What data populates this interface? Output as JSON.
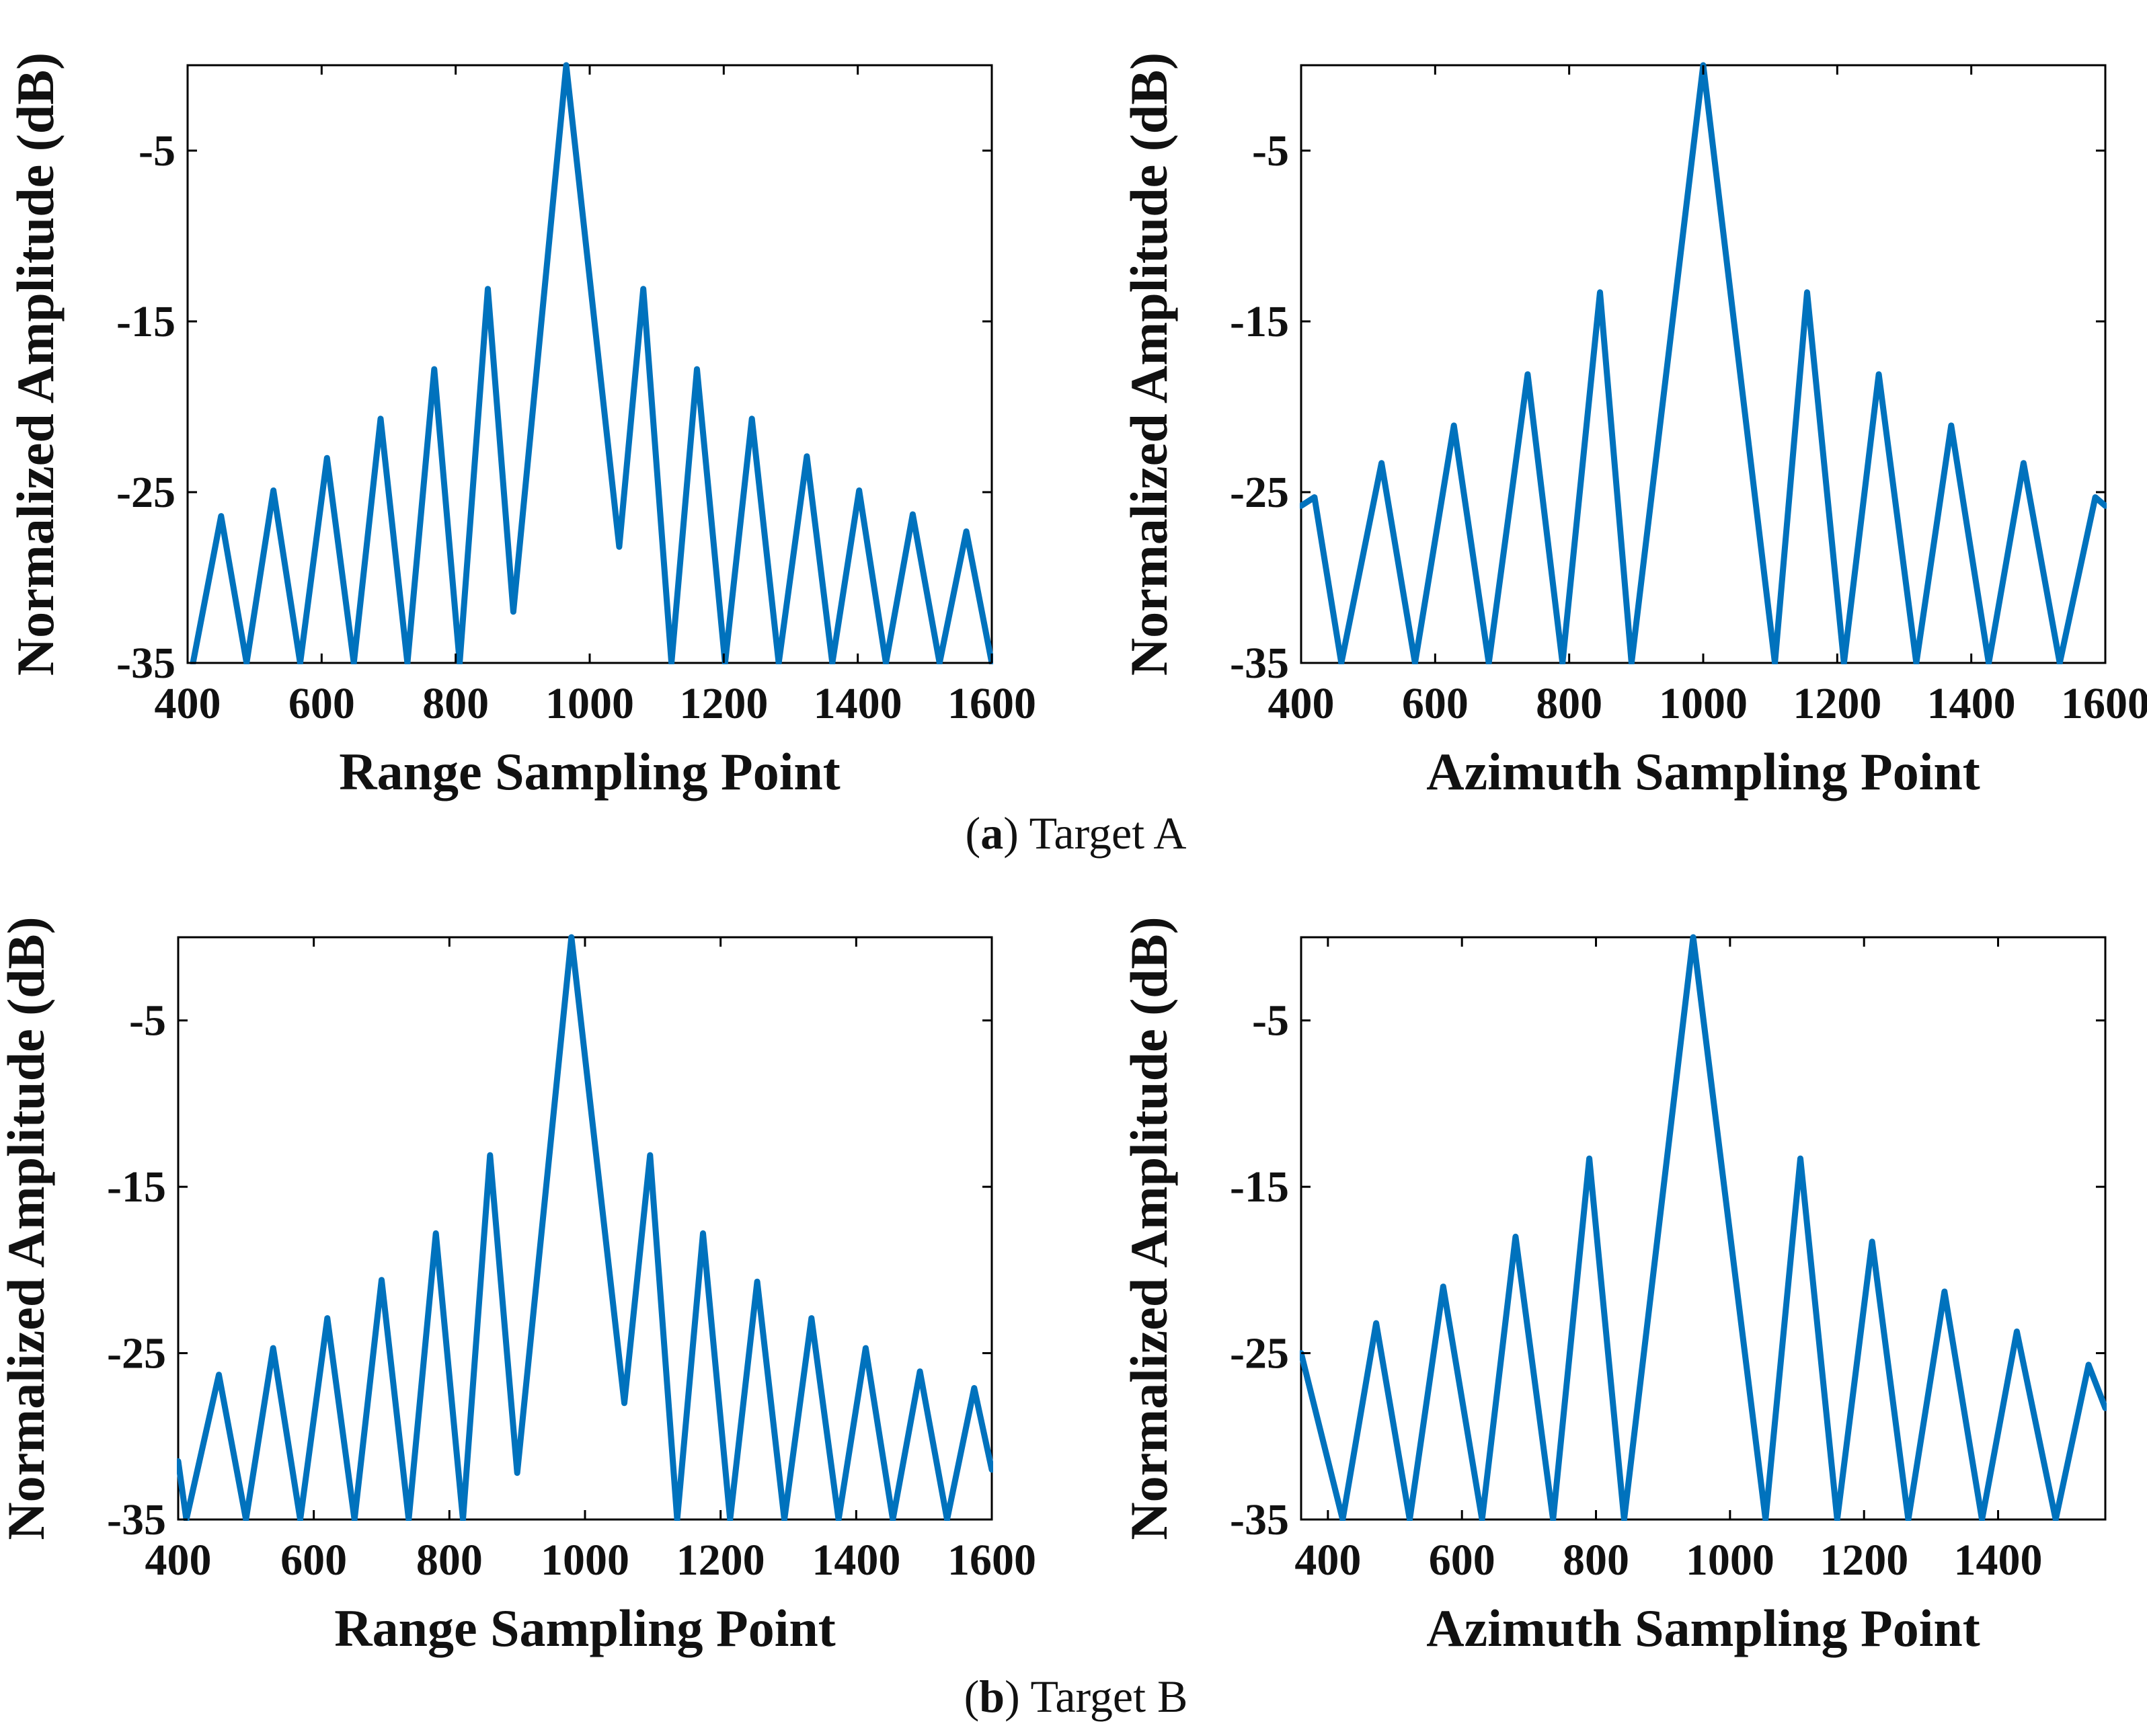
{
  "chart_data": [
    {
      "type": "line",
      "panel": "(a) top-left",
      "xlabel": "Range Sampling Point",
      "ylabel": "Normalized Amplitude (dB)",
      "xlim": [
        400,
        1600
      ],
      "ylim": [
        -35,
        0
      ],
      "xticks": [
        "400",
        "600",
        "800",
        "1000",
        "1200",
        "1400",
        "1600"
      ],
      "yticks": [
        "-5",
        "-15",
        "-25",
        "-35"
      ],
      "series": [
        {
          "name": "Target A range profile",
          "color": "#0072BD",
          "x": [
            408,
            450,
            488,
            528,
            568,
            608,
            648,
            688,
            728,
            768,
            806,
            848,
            886,
            965,
            1044,
            1080,
            1122,
            1160,
            1202,
            1242,
            1282,
            1324,
            1362,
            1402,
            1442,
            1482,
            1522,
            1562,
            1600
          ],
          "y": [
            -35,
            -26.4,
            -35,
            -24.9,
            -35,
            -23.0,
            -35,
            -20.7,
            -35,
            -17.8,
            -35,
            -13.1,
            -32.0,
            0,
            -28.2,
            -13.1,
            -35,
            -17.8,
            -35,
            -20.7,
            -35,
            -22.9,
            -35,
            -24.9,
            -35,
            -26.3,
            -35,
            -27.3,
            -35
          ]
        }
      ]
    },
    {
      "type": "line",
      "panel": "(a) top-right",
      "xlabel": "Azimuth Sampling Point",
      "ylabel": "Normalized Amplitude (dB)",
      "xlim": [
        400,
        1600
      ],
      "ylim": [
        -35,
        0
      ],
      "xticks": [
        "400",
        "600",
        "800",
        "1000",
        "1200",
        "1400",
        "1600"
      ],
      "yticks": [
        "-5",
        "-15",
        "-25",
        "-35"
      ],
      "series": [
        {
          "name": "Target A azimuth profile",
          "color": "#0072BD",
          "x": [
            400,
            420,
            460,
            520,
            570,
            628,
            680,
            738,
            790,
            846,
            893,
            1000,
            1107,
            1155,
            1210,
            1262,
            1318,
            1370,
            1426,
            1478,
            1532,
            1585,
            1600
          ],
          "y": [
            -25.8,
            -25.3,
            -35,
            -23.3,
            -35,
            -21.1,
            -35,
            -18.1,
            -35,
            -13.3,
            -35,
            0,
            -35,
            -13.3,
            -35,
            -18.1,
            -35,
            -21.1,
            -35,
            -23.3,
            -35,
            -25.3,
            -25.8
          ]
        }
      ]
    },
    {
      "type": "line",
      "panel": "(b) bottom-left",
      "xlabel": "Range Sampling Point",
      "ylabel": "Normalized Amplitude (dB)",
      "xlim": [
        400,
        1600
      ],
      "ylim": [
        -35,
        0
      ],
      "xticks": [
        "400",
        "600",
        "800",
        "1000",
        "1200",
        "1400",
        "1600"
      ],
      "yticks": [
        "-5",
        "-15",
        "-25",
        "-35"
      ],
      "series": [
        {
          "name": "Target B range profile",
          "color": "#0072BD",
          "x": [
            400,
            412,
            460,
            500,
            540,
            580,
            620,
            660,
            700,
            740,
            780,
            820,
            860,
            900,
            980,
            1058,
            1096,
            1136,
            1174,
            1214,
            1254,
            1294,
            1334,
            1374,
            1414,
            1454,
            1494,
            1534,
            1574,
            1600
          ],
          "y": [
            -31.5,
            -35,
            -26.3,
            -35,
            -24.7,
            -35,
            -22.9,
            -35,
            -20.6,
            -35,
            -17.8,
            -35,
            -13.1,
            -32.2,
            0,
            -28.0,
            -13.1,
            -35,
            -17.8,
            -35,
            -20.7,
            -35,
            -22.9,
            -35,
            -24.7,
            -35,
            -26.1,
            -35,
            -27.1,
            -32.0
          ]
        }
      ]
    },
    {
      "type": "line",
      "panel": "(b) bottom-right",
      "xlabel": "Azimuth Sampling Point",
      "ylabel": "Normalized Amplitude (dB)",
      "xlim": [
        360,
        1560
      ],
      "ylim": [
        -35,
        0
      ],
      "xticks": [
        "400",
        "600",
        "800",
        "1000",
        "1200",
        "1400"
      ],
      "yticks": [
        "-5",
        "-15",
        "-25",
        "-35"
      ],
      "series": [
        {
          "name": "Target B azimuth profile",
          "color": "#0072BD",
          "x": [
            360,
            422,
            472,
            522,
            572,
            630,
            680,
            736,
            790,
            842,
            945,
            1053,
            1105,
            1160,
            1212,
            1266,
            1320,
            1376,
            1428,
            1486,
            1535,
            1560
          ],
          "y": [
            -25.0,
            -35,
            -23.2,
            -35,
            -21.0,
            -35,
            -18.0,
            -35,
            -13.3,
            -35,
            0,
            -35,
            -13.3,
            -35,
            -18.3,
            -35,
            -21.3,
            -35,
            -23.7,
            -35,
            -25.7,
            -28.3
          ]
        }
      ]
    }
  ],
  "captions": [
    {
      "letter": "a",
      "text": "Target A"
    },
    {
      "letter": "b",
      "text": "Target B"
    }
  ]
}
